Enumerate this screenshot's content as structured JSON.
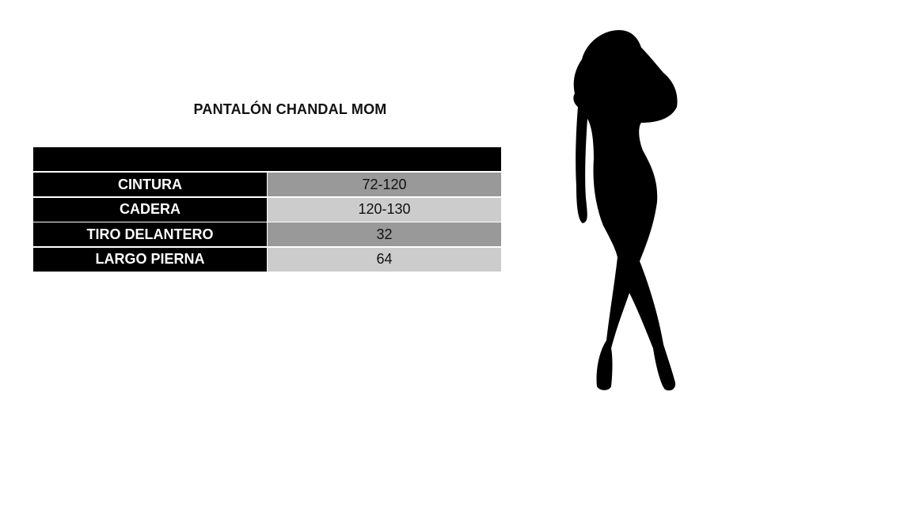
{
  "title": "PANTALÓN CHANDAL MOM",
  "table": {
    "rows": [
      {
        "label": "CINTURA",
        "value": "72-120"
      },
      {
        "label": "CADERA",
        "value": "120-130"
      },
      {
        "label": "TIRO DELANTERO",
        "value": "32"
      },
      {
        "label": "LARGO PIERNA",
        "value": "64"
      }
    ]
  },
  "colors": {
    "header": "#000000",
    "value_dark": "#999999",
    "value_light": "#cccccc"
  },
  "image": "woman-silhouette"
}
